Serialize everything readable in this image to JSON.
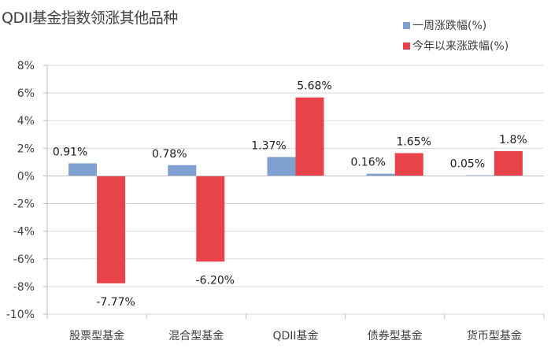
{
  "chart_data": {
    "type": "bar",
    "title": "QDII基金指数领涨其他品种",
    "categories": [
      "股票型基金",
      "混合型基金",
      "QDII基金",
      "债券型基金",
      "货币型基金"
    ],
    "series": [
      {
        "name": "一周涨跌幅(%)",
        "color": "#7f9fd0",
        "values": [
          0.91,
          0.78,
          1.37,
          0.16,
          0.05
        ],
        "labels": [
          "0.91%",
          "0.78%",
          "1.37%",
          "0.16%",
          "0.05%"
        ]
      },
      {
        "name": "今年以来涨跌幅(%)",
        "color": "#e8434b",
        "values": [
          -7.77,
          -6.2,
          5.68,
          1.65,
          1.8
        ],
        "labels": [
          "-7.77%",
          "-6.20%",
          "5.68%",
          "1.65%",
          "1.8%"
        ]
      }
    ],
    "ylim": [
      -10,
      8
    ],
    "yticks": [
      8,
      6,
      4,
      2,
      0,
      -2,
      -4,
      -6,
      -8,
      -10
    ],
    "ytick_labels": [
      "8%",
      "6%",
      "4%",
      "2%",
      "0%",
      "-2%",
      "-4%",
      "-6%",
      "-8%",
      "-10%"
    ],
    "xlabel": "",
    "ylabel": "",
    "grid": true,
    "legend": "top-right"
  }
}
